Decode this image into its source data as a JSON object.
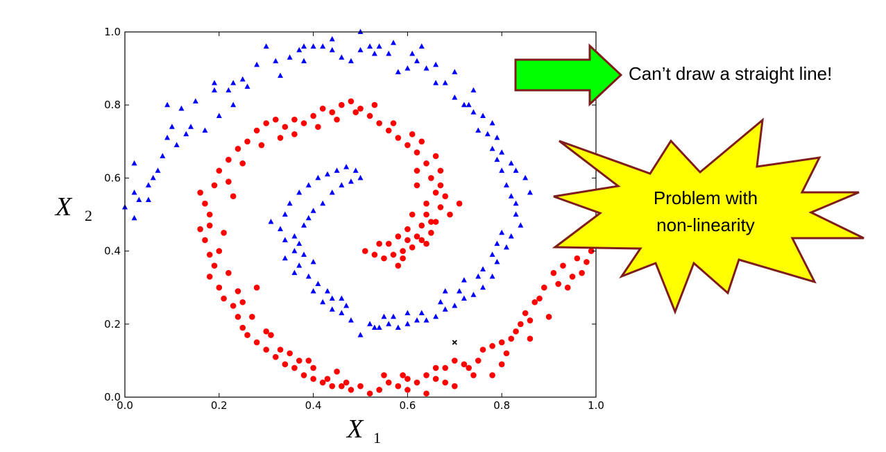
{
  "chart_data": {
    "type": "scatter",
    "title": "",
    "xlabel": "X",
    "xlabel_sub": "1",
    "ylabel": "X",
    "ylabel_sub": "2",
    "xlim": [
      0.0,
      1.0
    ],
    "ylim": [
      0.0,
      1.0
    ],
    "xticks": [
      "0.0",
      "0.2",
      "0.4",
      "0.6",
      "0.8",
      "1.0"
    ],
    "yticks": [
      "0.0",
      "0.2",
      "0.4",
      "0.6",
      "0.8",
      "1.0"
    ],
    "grid": false,
    "series": [
      {
        "marker": "triangle",
        "color": "#0000ff",
        "points": [
          [
            0.0,
            0.52
          ],
          [
            0.02,
            0.49
          ],
          [
            0.03,
            0.54
          ],
          [
            0.05,
            0.58
          ],
          [
            0.06,
            0.6
          ],
          [
            0.02,
            0.56
          ],
          [
            0.02,
            0.64
          ],
          [
            0.08,
            0.66
          ],
          [
            0.09,
            0.71
          ],
          [
            0.1,
            0.74
          ],
          [
            0.11,
            0.69
          ],
          [
            0.09,
            0.8
          ],
          [
            0.12,
            0.79
          ],
          [
            0.14,
            0.74
          ],
          [
            0.15,
            0.81
          ],
          [
            0.19,
            0.84
          ],
          [
            0.19,
            0.86
          ],
          [
            0.22,
            0.84
          ],
          [
            0.23,
            0.86
          ],
          [
            0.25,
            0.87
          ],
          [
            0.28,
            0.91
          ],
          [
            0.3,
            0.96
          ],
          [
            0.32,
            0.92
          ],
          [
            0.35,
            0.93
          ],
          [
            0.37,
            0.95
          ],
          [
            0.38,
            0.96
          ],
          [
            0.4,
            0.96
          ],
          [
            0.42,
            0.96
          ],
          [
            0.44,
            0.95
          ],
          [
            0.46,
            0.93
          ],
          [
            0.48,
            0.92
          ],
          [
            0.5,
            1.0
          ],
          [
            0.52,
            0.96
          ],
          [
            0.53,
            0.94
          ],
          [
            0.54,
            0.96
          ],
          [
            0.56,
            0.94
          ],
          [
            0.58,
            0.89
          ],
          [
            0.6,
            0.9
          ],
          [
            0.62,
            0.92
          ],
          [
            0.63,
            0.96
          ],
          [
            0.64,
            0.9
          ],
          [
            0.66,
            0.86
          ],
          [
            0.68,
            0.86
          ],
          [
            0.7,
            0.82
          ],
          [
            0.72,
            0.8
          ],
          [
            0.74,
            0.78
          ],
          [
            0.75,
            0.73
          ],
          [
            0.77,
            0.72
          ],
          [
            0.78,
            0.68
          ],
          [
            0.79,
            0.65
          ],
          [
            0.8,
            0.62
          ],
          [
            0.81,
            0.58
          ],
          [
            0.82,
            0.55
          ],
          [
            0.83,
            0.5
          ],
          [
            0.82,
            0.44
          ],
          [
            0.81,
            0.41
          ],
          [
            0.79,
            0.37
          ],
          [
            0.78,
            0.33
          ],
          [
            0.76,
            0.3
          ],
          [
            0.74,
            0.28
          ],
          [
            0.72,
            0.27
          ],
          [
            0.7,
            0.25
          ],
          [
            0.68,
            0.24
          ],
          [
            0.66,
            0.22
          ],
          [
            0.64,
            0.21
          ],
          [
            0.62,
            0.21
          ],
          [
            0.6,
            0.2
          ],
          [
            0.58,
            0.19
          ],
          [
            0.56,
            0.2
          ],
          [
            0.54,
            0.19
          ],
          [
            0.52,
            0.2
          ],
          [
            0.5,
            0.17
          ],
          [
            0.48,
            0.21
          ],
          [
            0.46,
            0.23
          ],
          [
            0.44,
            0.24
          ],
          [
            0.42,
            0.26
          ],
          [
            0.4,
            0.29
          ],
          [
            0.39,
            0.33
          ],
          [
            0.37,
            0.36
          ],
          [
            0.36,
            0.4
          ],
          [
            0.34,
            0.43
          ],
          [
            0.33,
            0.46
          ],
          [
            0.34,
            0.5
          ],
          [
            0.35,
            0.53
          ],
          [
            0.37,
            0.56
          ],
          [
            0.39,
            0.58
          ],
          [
            0.41,
            0.6
          ],
          [
            0.43,
            0.61
          ],
          [
            0.45,
            0.62
          ],
          [
            0.47,
            0.63
          ],
          [
            0.49,
            0.62
          ],
          [
            0.5,
            0.6
          ],
          [
            0.36,
            0.44
          ],
          [
            0.38,
            0.47
          ],
          [
            0.4,
            0.51
          ],
          [
            0.38,
            0.39
          ],
          [
            0.41,
            0.31
          ],
          [
            0.44,
            0.27
          ],
          [
            0.47,
            0.25
          ],
          [
            0.55,
            0.22
          ],
          [
            0.6,
            0.23
          ],
          [
            0.67,
            0.26
          ],
          [
            0.71,
            0.29
          ],
          [
            0.75,
            0.33
          ],
          [
            0.78,
            0.39
          ],
          [
            0.8,
            0.45
          ],
          [
            0.83,
            0.53
          ],
          [
            0.85,
            0.6
          ],
          [
            0.82,
            0.64
          ],
          [
            0.79,
            0.71
          ],
          [
            0.76,
            0.77
          ],
          [
            0.74,
            0.84
          ],
          [
            0.7,
            0.89
          ],
          [
            0.66,
            0.91
          ],
          [
            0.61,
            0.94
          ],
          [
            0.57,
            0.97
          ],
          [
            0.5,
            0.95
          ],
          [
            0.44,
            0.98
          ],
          [
            0.38,
            0.92
          ],
          [
            0.33,
            0.88
          ],
          [
            0.26,
            0.85
          ],
          [
            0.23,
            0.8
          ],
          [
            0.2,
            0.77
          ],
          [
            0.17,
            0.73
          ],
          [
            0.13,
            0.72
          ],
          [
            0.07,
            0.62
          ],
          [
            0.05,
            0.54
          ],
          [
            0.31,
            0.48
          ],
          [
            0.34,
            0.38
          ],
          [
            0.36,
            0.34
          ],
          [
            0.43,
            0.29
          ],
          [
            0.46,
            0.27
          ],
          [
            0.53,
            0.19
          ],
          [
            0.57,
            0.22
          ],
          [
            0.63,
            0.23
          ],
          [
            0.68,
            0.29
          ],
          [
            0.72,
            0.32
          ],
          [
            0.76,
            0.35
          ],
          [
            0.79,
            0.42
          ],
          [
            0.84,
            0.47
          ],
          [
            0.86,
            0.56
          ],
          [
            0.83,
            0.62
          ],
          [
            0.8,
            0.67
          ],
          [
            0.78,
            0.75
          ],
          [
            0.73,
            0.8
          ],
          [
            0.42,
            0.53
          ],
          [
            0.44,
            0.56
          ],
          [
            0.46,
            0.58
          ],
          [
            0.48,
            0.59
          ],
          [
            0.39,
            0.49
          ],
          [
            0.37,
            0.42
          ],
          [
            0.4,
            0.37
          ]
        ]
      },
      {
        "marker": "circle",
        "color": "#ff0000",
        "points": [
          [
            0.16,
            0.56
          ],
          [
            0.17,
            0.53
          ],
          [
            0.18,
            0.5
          ],
          [
            0.16,
            0.46
          ],
          [
            0.17,
            0.43
          ],
          [
            0.18,
            0.39
          ],
          [
            0.19,
            0.36
          ],
          [
            0.18,
            0.33
          ],
          [
            0.2,
            0.3
          ],
          [
            0.21,
            0.27
          ],
          [
            0.23,
            0.25
          ],
          [
            0.24,
            0.22
          ],
          [
            0.25,
            0.19
          ],
          [
            0.26,
            0.17
          ],
          [
            0.28,
            0.15
          ],
          [
            0.3,
            0.13
          ],
          [
            0.32,
            0.11
          ],
          [
            0.34,
            0.09
          ],
          [
            0.36,
            0.08
          ],
          [
            0.38,
            0.06
          ],
          [
            0.4,
            0.05
          ],
          [
            0.42,
            0.04
          ],
          [
            0.44,
            0.03
          ],
          [
            0.46,
            0.03
          ],
          [
            0.48,
            0.02
          ],
          [
            0.5,
            0.03
          ],
          [
            0.52,
            0.01
          ],
          [
            0.54,
            0.02
          ],
          [
            0.56,
            0.04
          ],
          [
            0.58,
            0.03
          ],
          [
            0.6,
            0.02
          ],
          [
            0.62,
            0.04
          ],
          [
            0.64,
            0.06
          ],
          [
            0.66,
            0.05
          ],
          [
            0.68,
            0.04
          ],
          [
            0.7,
            0.1
          ],
          [
            0.72,
            0.09
          ],
          [
            0.74,
            0.06
          ],
          [
            0.76,
            0.13
          ],
          [
            0.78,
            0.14
          ],
          [
            0.8,
            0.15
          ],
          [
            0.82,
            0.16
          ],
          [
            0.84,
            0.2
          ],
          [
            0.85,
            0.23
          ],
          [
            0.87,
            0.26
          ],
          [
            0.89,
            0.3
          ],
          [
            0.91,
            0.34
          ],
          [
            0.93,
            0.36
          ],
          [
            0.96,
            0.38
          ],
          [
            0.99,
            0.4
          ],
          [
            0.2,
            0.62
          ],
          [
            0.22,
            0.65
          ],
          [
            0.24,
            0.68
          ],
          [
            0.26,
            0.7
          ],
          [
            0.28,
            0.73
          ],
          [
            0.3,
            0.75
          ],
          [
            0.32,
            0.76
          ],
          [
            0.34,
            0.74
          ],
          [
            0.36,
            0.72
          ],
          [
            0.38,
            0.75
          ],
          [
            0.4,
            0.77
          ],
          [
            0.42,
            0.79
          ],
          [
            0.44,
            0.78
          ],
          [
            0.46,
            0.8
          ],
          [
            0.48,
            0.81
          ],
          [
            0.5,
            0.79
          ],
          [
            0.52,
            0.77
          ],
          [
            0.54,
            0.75
          ],
          [
            0.56,
            0.73
          ],
          [
            0.58,
            0.71
          ],
          [
            0.6,
            0.69
          ],
          [
            0.62,
            0.67
          ],
          [
            0.64,
            0.64
          ],
          [
            0.65,
            0.6
          ],
          [
            0.66,
            0.56
          ],
          [
            0.67,
            0.52
          ],
          [
            0.66,
            0.48
          ],
          [
            0.65,
            0.45
          ],
          [
            0.63,
            0.43
          ],
          [
            0.61,
            0.41
          ],
          [
            0.59,
            0.4
          ],
          [
            0.57,
            0.39
          ],
          [
            0.55,
            0.38
          ],
          [
            0.53,
            0.39
          ],
          [
            0.51,
            0.4
          ],
          [
            0.61,
            0.5
          ],
          [
            0.63,
            0.47
          ],
          [
            0.64,
            0.53
          ],
          [
            0.62,
            0.58
          ],
          [
            0.6,
            0.46
          ],
          [
            0.58,
            0.44
          ],
          [
            0.56,
            0.42
          ],
          [
            0.62,
            0.44
          ],
          [
            0.64,
            0.5
          ],
          [
            0.59,
            0.38
          ],
          [
            0.19,
            0.58
          ],
          [
            0.18,
            0.47
          ],
          [
            0.2,
            0.4
          ],
          [
            0.22,
            0.34
          ],
          [
            0.24,
            0.29
          ],
          [
            0.27,
            0.22
          ],
          [
            0.3,
            0.18
          ],
          [
            0.33,
            0.13
          ],
          [
            0.37,
            0.1
          ],
          [
            0.4,
            0.08
          ],
          [
            0.43,
            0.05
          ],
          [
            0.47,
            0.04
          ],
          [
            0.55,
            0.06
          ],
          [
            0.6,
            0.05
          ],
          [
            0.66,
            0.08
          ],
          [
            0.7,
            0.03
          ],
          [
            0.73,
            0.08
          ],
          [
            0.78,
            0.06
          ],
          [
            0.81,
            0.12
          ],
          [
            0.83,
            0.18
          ],
          [
            0.86,
            0.21
          ],
          [
            0.88,
            0.27
          ],
          [
            0.92,
            0.31
          ],
          [
            0.95,
            0.33
          ],
          [
            0.98,
            0.37
          ],
          [
            0.22,
            0.59
          ],
          [
            0.25,
            0.64
          ],
          [
            0.29,
            0.69
          ],
          [
            0.33,
            0.71
          ],
          [
            0.36,
            0.76
          ],
          [
            0.41,
            0.74
          ],
          [
            0.45,
            0.76
          ],
          [
            0.49,
            0.78
          ],
          [
            0.53,
            0.8
          ],
          [
            0.57,
            0.75
          ],
          [
            0.61,
            0.72
          ],
          [
            0.63,
            0.7
          ],
          [
            0.66,
            0.66
          ],
          [
            0.67,
            0.62
          ],
          [
            0.68,
            0.55
          ],
          [
            0.69,
            0.5
          ],
          [
            0.64,
            0.42
          ],
          [
            0.54,
            0.42
          ],
          [
            0.58,
            0.36
          ],
          [
            0.6,
            0.43
          ],
          [
            0.65,
            0.48
          ],
          [
            0.67,
            0.58
          ],
          [
            0.62,
            0.62
          ],
          [
            0.71,
            0.53
          ],
          [
            0.23,
            0.55
          ],
          [
            0.21,
            0.45
          ],
          [
            0.28,
            0.3
          ],
          [
            0.25,
            0.26
          ],
          [
            0.31,
            0.17
          ],
          [
            0.35,
            0.12
          ],
          [
            0.39,
            0.1
          ],
          [
            0.45,
            0.07
          ],
          [
            0.54,
            0.02
          ],
          [
            0.59,
            0.06
          ],
          [
            0.64,
            0.01
          ],
          [
            0.68,
            0.08
          ],
          [
            0.75,
            0.1
          ],
          [
            0.8,
            0.09
          ],
          [
            0.86,
            0.16
          ],
          [
            0.9,
            0.22
          ],
          [
            0.94,
            0.3
          ],
          [
            0.97,
            0.34
          ]
        ]
      },
      {
        "marker": "x",
        "color": "#000000",
        "points": [
          [
            0.7,
            0.15
          ]
        ]
      }
    ]
  },
  "callouts": {
    "arrow_text": "Can’t draw a straight line!",
    "burst_text_line1": "Problem with",
    "burst_text_line2": "non-linearity",
    "arrow_fill": "#00ff00",
    "arrow_stroke": "#7f1d1d",
    "burst_fill": "#ffff00",
    "burst_stroke": "#7f1d1d"
  }
}
